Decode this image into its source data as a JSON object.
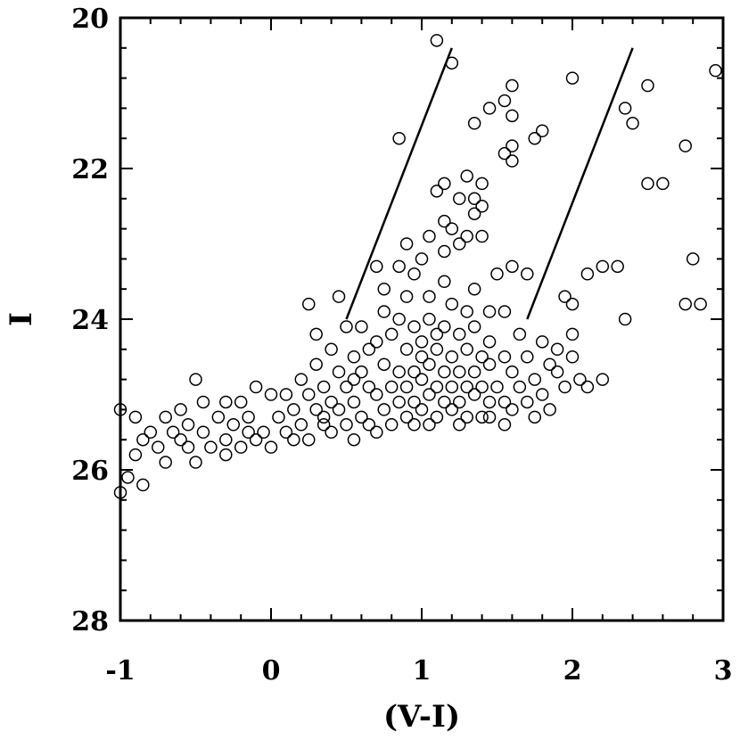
{
  "chart_data": {
    "type": "scatter",
    "title": "",
    "xlabel": "(V-I)",
    "ylabel": "I",
    "xlim": [
      -1,
      3
    ],
    "ylim": [
      28,
      20
    ],
    "y_inverted": true,
    "marker": "open-circle",
    "grid": false,
    "x_ticks": [
      "-1",
      "0",
      "1",
      "2",
      "3"
    ],
    "y_ticks": [
      "20",
      "22",
      "24",
      "26",
      "28"
    ],
    "x_tick_values": [
      -1,
      0,
      1,
      2,
      3
    ],
    "y_tick_values": [
      20,
      22,
      24,
      26,
      28
    ],
    "colors": {
      "axis": "#000000",
      "marker": "#000000",
      "background": "#ffffff"
    },
    "reference_lines": [
      {
        "x": [
          0.5,
          1.2
        ],
        "y": [
          24.0,
          20.4
        ]
      },
      {
        "x": [
          1.7,
          2.4
        ],
        "y": [
          24.0,
          20.4
        ]
      }
    ],
    "series": [
      {
        "values": [
          [
            1.1,
            20.3
          ],
          [
            1.2,
            20.6
          ],
          [
            2.0,
            20.8
          ],
          [
            2.5,
            20.9
          ],
          [
            2.95,
            20.7
          ],
          [
            1.6,
            20.9
          ],
          [
            1.55,
            21.1
          ],
          [
            1.45,
            21.2
          ],
          [
            1.6,
            21.3
          ],
          [
            1.35,
            21.4
          ],
          [
            2.35,
            21.2
          ],
          [
            2.4,
            21.4
          ],
          [
            0.85,
            21.6
          ],
          [
            1.8,
            21.5
          ],
          [
            1.75,
            21.6
          ],
          [
            1.6,
            21.7
          ],
          [
            1.55,
            21.8
          ],
          [
            1.6,
            21.9
          ],
          [
            2.75,
            21.7
          ],
          [
            1.3,
            22.1
          ],
          [
            1.4,
            22.2
          ],
          [
            1.15,
            22.2
          ],
          [
            1.1,
            22.3
          ],
          [
            2.5,
            22.2
          ],
          [
            2.6,
            22.2
          ],
          [
            1.35,
            22.4
          ],
          [
            1.25,
            22.4
          ],
          [
            1.35,
            22.6
          ],
          [
            1.4,
            22.5
          ],
          [
            1.15,
            22.7
          ],
          [
            1.2,
            22.8
          ],
          [
            1.3,
            22.9
          ],
          [
            1.25,
            23.0
          ],
          [
            0.9,
            23.0
          ],
          [
            1.05,
            22.9
          ],
          [
            1.4,
            22.9
          ],
          [
            1.15,
            23.1
          ],
          [
            0.85,
            23.3
          ],
          [
            0.7,
            23.3
          ],
          [
            1.0,
            23.2
          ],
          [
            2.3,
            23.3
          ],
          [
            2.2,
            23.3
          ],
          [
            2.1,
            23.4
          ],
          [
            2.8,
            23.2
          ],
          [
            1.5,
            23.4
          ],
          [
            1.6,
            23.3
          ],
          [
            1.7,
            23.4
          ],
          [
            0.95,
            23.4
          ],
          [
            1.15,
            23.5
          ],
          [
            1.35,
            23.6
          ],
          [
            0.75,
            23.6
          ],
          [
            0.9,
            23.7
          ],
          [
            1.05,
            23.7
          ],
          [
            0.25,
            23.8
          ],
          [
            0.45,
            23.7
          ],
          [
            1.95,
            23.7
          ],
          [
            2.0,
            23.8
          ],
          [
            2.75,
            23.8
          ],
          [
            2.85,
            23.8
          ],
          [
            2.35,
            24.0
          ],
          [
            1.2,
            23.8
          ],
          [
            1.3,
            23.9
          ],
          [
            1.45,
            23.9
          ],
          [
            1.55,
            23.9
          ],
          [
            0.75,
            23.9
          ],
          [
            0.85,
            24.0
          ],
          [
            0.6,
            24.1
          ],
          [
            0.5,
            24.1
          ],
          [
            0.95,
            24.1
          ],
          [
            1.05,
            24.0
          ],
          [
            1.15,
            24.1
          ],
          [
            1.25,
            24.2
          ],
          [
            1.35,
            24.1
          ],
          [
            0.3,
            24.2
          ],
          [
            0.7,
            24.3
          ],
          [
            0.8,
            24.2
          ],
          [
            1.45,
            24.3
          ],
          [
            1.65,
            24.2
          ],
          [
            1.8,
            24.3
          ],
          [
            2.0,
            24.2
          ],
          [
            1.9,
            24.4
          ],
          [
            0.4,
            24.4
          ],
          [
            0.55,
            24.5
          ],
          [
            0.65,
            24.4
          ],
          [
            0.9,
            24.4
          ],
          [
            1.0,
            24.5
          ],
          [
            1.1,
            24.4
          ],
          [
            1.2,
            24.5
          ],
          [
            1.3,
            24.4
          ],
          [
            1.4,
            24.5
          ],
          [
            1.55,
            24.5
          ],
          [
            1.7,
            24.5
          ],
          [
            1.85,
            24.6
          ],
          [
            2.0,
            24.5
          ],
          [
            0.3,
            24.6
          ],
          [
            0.45,
            24.7
          ],
          [
            0.6,
            24.7
          ],
          [
            0.75,
            24.6
          ],
          [
            0.85,
            24.7
          ],
          [
            0.95,
            24.7
          ],
          [
            1.05,
            24.6
          ],
          [
            1.15,
            24.7
          ],
          [
            1.25,
            24.7
          ],
          [
            1.35,
            24.7
          ],
          [
            1.45,
            24.6
          ],
          [
            1.6,
            24.7
          ],
          [
            1.75,
            24.8
          ],
          [
            1.9,
            24.7
          ],
          [
            2.05,
            24.8
          ],
          [
            2.2,
            24.8
          ],
          [
            -0.5,
            24.8
          ],
          [
            0.2,
            24.8
          ],
          [
            0.35,
            24.9
          ],
          [
            0.5,
            24.9
          ],
          [
            0.65,
            24.9
          ],
          [
            0.8,
            24.9
          ],
          [
            0.9,
            24.9
          ],
          [
            1.0,
            24.8
          ],
          [
            1.1,
            24.9
          ],
          [
            1.2,
            24.9
          ],
          [
            1.3,
            24.9
          ],
          [
            1.4,
            24.9
          ],
          [
            1.5,
            24.9
          ],
          [
            1.65,
            24.9
          ],
          [
            1.8,
            25.0
          ],
          [
            1.95,
            24.9
          ],
          [
            2.1,
            24.9
          ],
          [
            -0.1,
            24.9
          ],
          [
            0.0,
            25.0
          ],
          [
            0.1,
            25.0
          ],
          [
            0.25,
            25.0
          ],
          [
            0.4,
            25.1
          ],
          [
            0.55,
            25.1
          ],
          [
            0.7,
            25.0
          ],
          [
            0.85,
            25.1
          ],
          [
            0.95,
            25.1
          ],
          [
            1.05,
            25.0
          ],
          [
            1.15,
            25.1
          ],
          [
            1.25,
            25.1
          ],
          [
            1.35,
            25.0
          ],
          [
            1.45,
            25.1
          ],
          [
            1.55,
            25.1
          ],
          [
            1.7,
            25.1
          ],
          [
            1.85,
            25.2
          ],
          [
            -0.3,
            25.1
          ],
          [
            -0.2,
            25.1
          ],
          [
            -0.45,
            25.1
          ],
          [
            0.15,
            25.2
          ],
          [
            0.3,
            25.2
          ],
          [
            0.45,
            25.2
          ],
          [
            0.6,
            25.3
          ],
          [
            0.75,
            25.2
          ],
          [
            0.9,
            25.3
          ],
          [
            1.0,
            25.2
          ],
          [
            1.1,
            25.3
          ],
          [
            1.2,
            25.2
          ],
          [
            1.3,
            25.3
          ],
          [
            1.45,
            25.3
          ],
          [
            1.6,
            25.2
          ],
          [
            -0.6,
            25.2
          ],
          [
            -0.35,
            25.3
          ],
          [
            -0.15,
            25.3
          ],
          [
            0.05,
            25.3
          ],
          [
            0.2,
            25.4
          ],
          [
            0.35,
            25.4
          ],
          [
            0.5,
            25.4
          ],
          [
            0.65,
            25.4
          ],
          [
            0.8,
            25.4
          ],
          [
            0.95,
            25.4
          ],
          [
            1.05,
            25.4
          ],
          [
            1.25,
            25.4
          ],
          [
            1.4,
            25.3
          ],
          [
            -0.7,
            25.3
          ],
          [
            -0.9,
            25.3
          ],
          [
            -0.55,
            25.4
          ],
          [
            -0.25,
            25.4
          ],
          [
            -0.05,
            25.5
          ],
          [
            0.1,
            25.5
          ],
          [
            0.25,
            25.6
          ],
          [
            0.4,
            25.5
          ],
          [
            -1.0,
            25.2
          ],
          [
            -0.8,
            25.5
          ],
          [
            -0.65,
            25.5
          ],
          [
            -0.45,
            25.5
          ],
          [
            -0.3,
            25.6
          ],
          [
            -0.1,
            25.6
          ],
          [
            0.0,
            25.7
          ],
          [
            0.15,
            25.6
          ],
          [
            -0.85,
            25.6
          ],
          [
            -0.75,
            25.7
          ],
          [
            -0.55,
            25.7
          ],
          [
            -0.4,
            25.7
          ],
          [
            -0.2,
            25.7
          ],
          [
            -0.9,
            25.8
          ],
          [
            -0.7,
            25.9
          ],
          [
            -0.5,
            25.9
          ],
          [
            -0.95,
            26.1
          ],
          [
            -0.85,
            26.2
          ],
          [
            -1.0,
            26.3
          ],
          [
            -0.3,
            25.8
          ],
          [
            -0.15,
            25.5
          ],
          [
            -0.6,
            25.6
          ],
          [
            0.55,
            25.6
          ],
          [
            0.7,
            25.5
          ],
          [
            1.55,
            25.4
          ],
          [
            1.75,
            25.3
          ],
          [
            1.0,
            24.3
          ],
          [
            1.1,
            24.2
          ],
          [
            0.55,
            24.8
          ],
          [
            0.35,
            25.3
          ]
        ]
      }
    ]
  }
}
